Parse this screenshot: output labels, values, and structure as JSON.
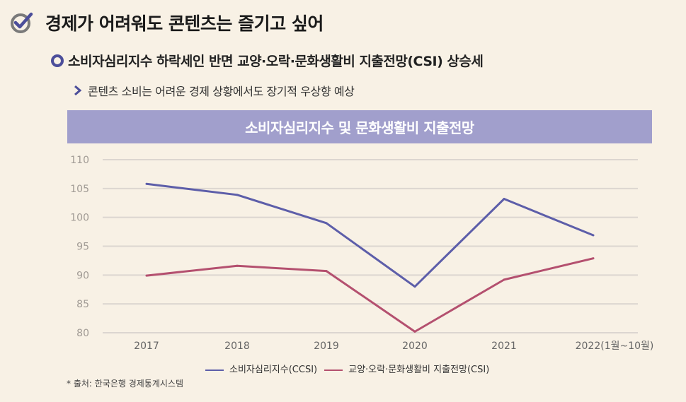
{
  "header": {
    "title": "경제가 어려워도 콘텐츠는 즐기고 싶어",
    "title_icon": "check-circle-icon",
    "subtitle": "소비자심리지수 하락세인 반면 교양·오락·문화생활비 지출전망(CSI) 상승세",
    "bullet": "콘텐츠 소비는 어려운 경제 상황에서도 장기적 우상향 예상"
  },
  "chart_data": {
    "type": "line",
    "title": "소비자심리지수 및 문화생활비 지출전망",
    "categories": [
      "2017",
      "2018",
      "2019",
      "2020",
      "2021",
      "2022(1월~10월)"
    ],
    "ylim": [
      80,
      110
    ],
    "yticks": [
      "110",
      "105",
      "100",
      "95",
      "90",
      "85",
      "80"
    ],
    "grid": true,
    "legend_position": "bottom",
    "series": [
      {
        "name": "소비자심리지수(CCSI)",
        "color": "#5d5ea9",
        "values": [
          105.8,
          103.9,
          99.0,
          88.0,
          103.2,
          96.9
        ]
      },
      {
        "name": "교양·오락·문화생활비 지출전망(CSI)",
        "color": "#b4506f",
        "values": [
          89.9,
          91.6,
          90.7,
          80.2,
          89.2,
          92.9
        ]
      }
    ]
  },
  "source": "* 출처: 한국은행 경제통계시스템",
  "colors": {
    "background": "#f8f1e5",
    "title_bar": "#a19fcc",
    "accent": "#4c4e9a"
  }
}
